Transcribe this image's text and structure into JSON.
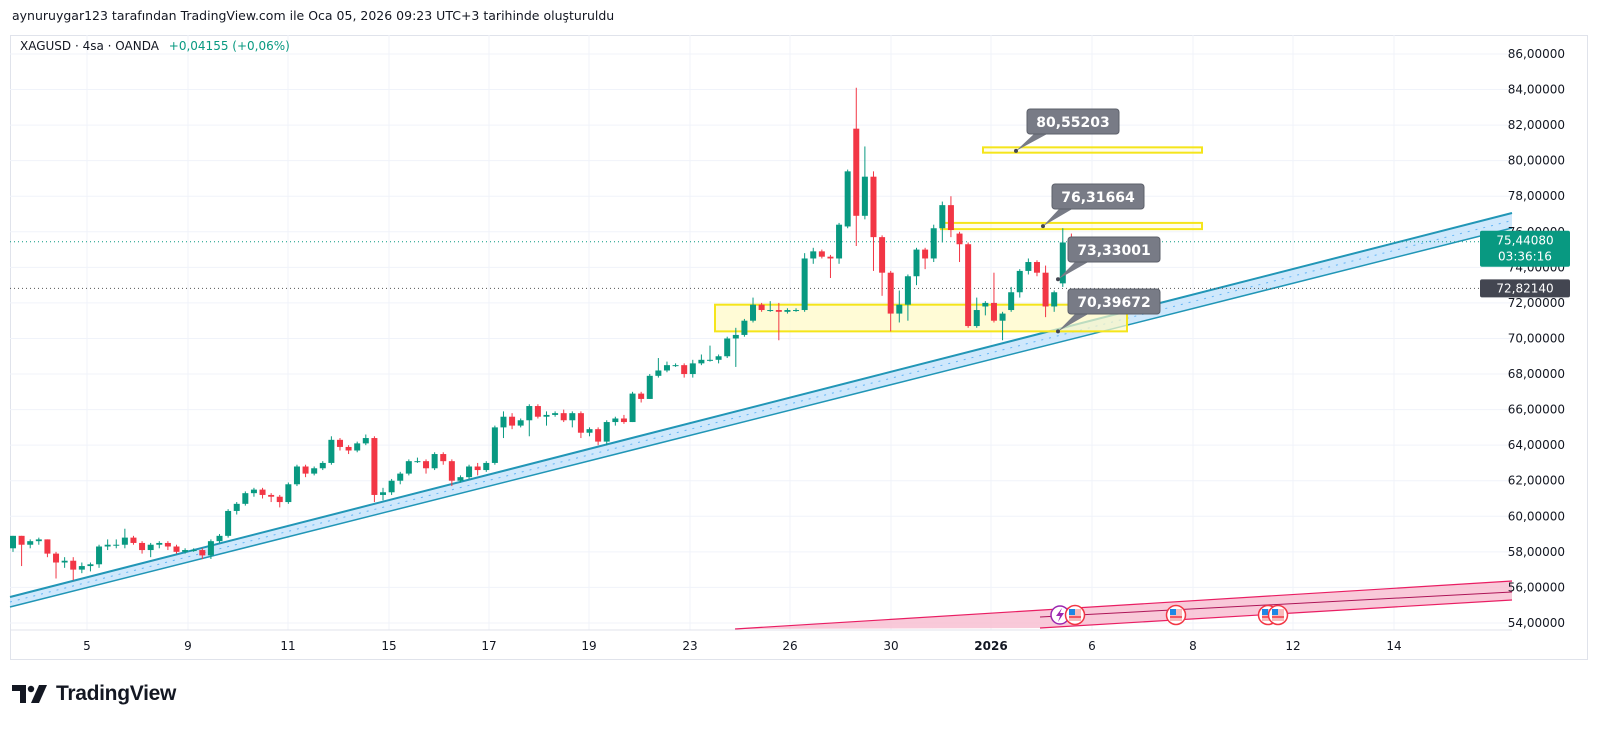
{
  "header": {
    "credit": "aynuruygar123 tarafından TradingView.com ile Oca 05, 2026 09:23 UTC+3 tarihinde oluşturuldu"
  },
  "legend": {
    "symbol": "XAGUSD · 4sa · OANDA",
    "change": "+0,04155 (+0,06%)"
  },
  "brand": {
    "name": "TradingView"
  },
  "colors": {
    "up": "#089981",
    "down": "#f23645",
    "trend": "#2196b6",
    "zone": "#f5e51b",
    "callout": "#787b86",
    "pink": "#e91e63"
  },
  "chart_data": {
    "type": "candlestick",
    "title": "XAGUSD · 4sa · OANDA",
    "ylim": [
      53,
      87
    ],
    "grid": true,
    "yticks": [
      "86,00000",
      "84,00000",
      "82,00000",
      "80,00000",
      "78,00000",
      "76,00000",
      "74,00000",
      "72,00000",
      "70,00000",
      "68,00000",
      "66,00000",
      "64,00000",
      "62,00000",
      "60,00000",
      "58,00000",
      "56,00000",
      "54,00000"
    ],
    "ytick_values": [
      86,
      84,
      82,
      80,
      78,
      76,
      74,
      72,
      70,
      68,
      66,
      64,
      62,
      60,
      58,
      56,
      54
    ],
    "xticks": [
      "5",
      "9",
      "11",
      "15",
      "17",
      "19",
      "23",
      "26",
      "30",
      "2026",
      "6",
      "8",
      "12",
      "14"
    ],
    "last_price": "75,44080",
    "countdown": "03:36:16",
    "last_price_value": 75.4408,
    "marker_price": "72,82140",
    "marker_price_value": 72.8214,
    "annotations": [
      {
        "label": "80,55203",
        "value": 80.55203
      },
      {
        "label": "76,31664",
        "value": 76.31664
      },
      {
        "label": "73,33001",
        "value": 73.33001
      },
      {
        "label": "70,39672",
        "value": 70.39672
      }
    ],
    "zones": [
      {
        "from": 80.45,
        "to": 80.75
      },
      {
        "from": 76.15,
        "to": 76.5
      },
      {
        "from": 70.4,
        "to": 71.9
      }
    ],
    "ohlc": [
      [
        58.2,
        58.9,
        58.0,
        58.9
      ],
      [
        58.9,
        58.9,
        57.2,
        58.4
      ],
      [
        58.4,
        58.7,
        58.2,
        58.6
      ],
      [
        58.6,
        58.8,
        58.4,
        58.7
      ],
      [
        58.7,
        58.7,
        57.7,
        57.9
      ],
      [
        57.9,
        58.0,
        56.5,
        57.4
      ],
      [
        57.4,
        57.7,
        57.1,
        57.5
      ],
      [
        57.5,
        57.7,
        56.4,
        57.0
      ],
      [
        57.0,
        57.4,
        56.8,
        57.2
      ],
      [
        57.2,
        57.4,
        56.9,
        57.3
      ],
      [
        57.3,
        58.4,
        57.1,
        58.3
      ],
      [
        58.3,
        58.7,
        58.1,
        58.4
      ],
      [
        58.4,
        58.7,
        58.2,
        58.4
      ],
      [
        58.4,
        59.3,
        58.2,
        58.8
      ],
      [
        58.8,
        58.9,
        58.4,
        58.5
      ],
      [
        58.5,
        58.6,
        57.9,
        58.1
      ],
      [
        58.1,
        58.5,
        57.7,
        58.4
      ],
      [
        58.4,
        58.6,
        58.2,
        58.5
      ],
      [
        58.5,
        58.6,
        58.1,
        58.3
      ],
      [
        58.3,
        58.4,
        57.9,
        58.0
      ],
      [
        58.0,
        58.2,
        57.9,
        58.1
      ],
      [
        58.1,
        58.2,
        58.0,
        58.1
      ],
      [
        58.1,
        58.2,
        57.6,
        57.8
      ],
      [
        57.8,
        58.7,
        57.6,
        58.6
      ],
      [
        58.6,
        59.0,
        58.5,
        58.9
      ],
      [
        58.9,
        60.4,
        58.8,
        60.3
      ],
      [
        60.3,
        60.8,
        60.1,
        60.7
      ],
      [
        60.7,
        61.4,
        60.6,
        61.3
      ],
      [
        61.3,
        61.6,
        61.1,
        61.5
      ],
      [
        61.5,
        61.6,
        61.0,
        61.2
      ],
      [
        61.2,
        61.3,
        60.8,
        61.1
      ],
      [
        61.1,
        61.2,
        60.5,
        60.8
      ],
      [
        60.8,
        61.9,
        60.7,
        61.8
      ],
      [
        61.8,
        62.9,
        61.7,
        62.8
      ],
      [
        62.8,
        62.9,
        62.2,
        62.4
      ],
      [
        62.4,
        62.8,
        62.3,
        62.7
      ],
      [
        62.7,
        63.1,
        62.6,
        63.0
      ],
      [
        63.0,
        64.5,
        62.9,
        64.3
      ],
      [
        64.3,
        64.4,
        63.7,
        63.9
      ],
      [
        63.9,
        64.0,
        63.5,
        63.7
      ],
      [
        63.7,
        64.2,
        63.6,
        64.1
      ],
      [
        64.1,
        64.6,
        64.0,
        64.4
      ],
      [
        64.4,
        64.5,
        60.8,
        61.2
      ],
      [
        61.2,
        61.6,
        60.9,
        61.35
      ],
      [
        61.35,
        62.1,
        61.2,
        62.0
      ],
      [
        62.0,
        62.5,
        61.8,
        62.4
      ],
      [
        62.4,
        63.2,
        62.3,
        63.1
      ],
      [
        63.1,
        63.3,
        63.0,
        63.1
      ],
      [
        63.1,
        63.2,
        62.4,
        62.7
      ],
      [
        62.7,
        63.6,
        62.6,
        63.5
      ],
      [
        63.5,
        63.6,
        62.9,
        63.1
      ],
      [
        63.1,
        63.2,
        61.7,
        62.0
      ],
      [
        62.0,
        62.3,
        61.9,
        62.2
      ],
      [
        62.2,
        62.9,
        62.1,
        62.8
      ],
      [
        62.8,
        63.0,
        62.3,
        62.6
      ],
      [
        62.6,
        63.1,
        62.5,
        63.0
      ],
      [
        63.0,
        65.1,
        62.9,
        65.0
      ],
      [
        65.0,
        65.9,
        64.4,
        65.6
      ],
      [
        65.6,
        65.8,
        64.9,
        65.1
      ],
      [
        65.1,
        65.5,
        65.0,
        65.4
      ],
      [
        65.4,
        66.3,
        64.5,
        66.2
      ],
      [
        66.2,
        66.3,
        65.5,
        65.6
      ],
      [
        65.6,
        65.9,
        65.1,
        65.7
      ],
      [
        65.7,
        65.9,
        65.6,
        65.8
      ],
      [
        65.8,
        66.0,
        65.3,
        65.4
      ],
      [
        65.4,
        65.9,
        65.0,
        65.8
      ],
      [
        65.8,
        65.9,
        64.4,
        64.7
      ],
      [
        64.7,
        65.0,
        64.5,
        64.9
      ],
      [
        64.9,
        65.0,
        64.0,
        64.2
      ],
      [
        64.2,
        65.4,
        64.0,
        65.3
      ],
      [
        65.3,
        65.6,
        65.1,
        65.5
      ],
      [
        65.5,
        65.7,
        65.2,
        65.3
      ],
      [
        65.3,
        67.0,
        65.3,
        66.9
      ],
      [
        66.9,
        67.0,
        66.4,
        66.6
      ],
      [
        66.6,
        68.0,
        66.6,
        67.9
      ],
      [
        67.9,
        68.9,
        67.8,
        68.2
      ],
      [
        68.2,
        68.7,
        68.1,
        68.5
      ],
      [
        68.5,
        68.6,
        68.4,
        68.5
      ],
      [
        68.5,
        68.6,
        67.8,
        68.0
      ],
      [
        68.0,
        68.8,
        67.8,
        68.6
      ],
      [
        68.6,
        69.1,
        68.5,
        68.8
      ],
      [
        68.8,
        69.6,
        68.7,
        68.8
      ],
      [
        68.8,
        69.1,
        68.6,
        69.0
      ],
      [
        69.0,
        70.1,
        68.9,
        70.0
      ],
      [
        70.0,
        70.6,
        68.4,
        70.2
      ],
      [
        70.2,
        71.1,
        70.1,
        71.0
      ],
      [
        71.0,
        72.3,
        70.9,
        71.9
      ],
      [
        71.9,
        72.0,
        71.5,
        71.6
      ],
      [
        71.6,
        72.1,
        71.5,
        71.6
      ],
      [
        71.6,
        72.0,
        69.9,
        71.5
      ],
      [
        71.5,
        71.7,
        71.4,
        71.6
      ],
      [
        71.6,
        71.7,
        71.5,
        71.6
      ],
      [
        71.6,
        74.8,
        71.5,
        74.5
      ],
      [
        74.5,
        75.1,
        74.2,
        74.9
      ],
      [
        74.9,
        75.0,
        74.5,
        74.6
      ],
      [
        74.6,
        74.7,
        73.4,
        74.5
      ],
      [
        74.5,
        76.5,
        74.2,
        76.4
      ],
      [
        76.3,
        79.5,
        76.2,
        79.4
      ],
      [
        81.8,
        84.1,
        75.2,
        76.9
      ],
      [
        76.9,
        80.8,
        76.7,
        79.1
      ],
      [
        79.1,
        79.4,
        73.8,
        75.7
      ],
      [
        75.7,
        75.8,
        72.4,
        73.7
      ],
      [
        73.7,
        73.8,
        70.4,
        71.4
      ],
      [
        71.4,
        72.7,
        70.9,
        71.9
      ],
      [
        71.9,
        73.6,
        71.0,
        73.5
      ],
      [
        73.5,
        75.1,
        73.0,
        75.0
      ],
      [
        75.0,
        75.1,
        73.9,
        74.5
      ],
      [
        74.5,
        76.4,
        74.3,
        76.2
      ],
      [
        76.2,
        77.7,
        75.4,
        77.5
      ],
      [
        77.5,
        78.0,
        75.7,
        76.1
      ],
      [
        75.9,
        76.0,
        74.3,
        75.3
      ],
      [
        75.3,
        75.4,
        70.6,
        70.7
      ],
      [
        70.7,
        72.3,
        70.6,
        71.6
      ],
      [
        71.8,
        72.1,
        71.3,
        72.0
      ],
      [
        72.0,
        73.7,
        70.9,
        71.0
      ],
      [
        71.0,
        71.5,
        69.9,
        71.4
      ],
      [
        71.6,
        72.9,
        71.5,
        72.6
      ],
      [
        72.6,
        73.9,
        72.3,
        73.8
      ],
      [
        73.8,
        74.5,
        73.6,
        74.3
      ],
      [
        74.3,
        74.4,
        73.5,
        73.7
      ],
      [
        73.7,
        74.1,
        71.2,
        71.8
      ],
      [
        71.8,
        72.7,
        71.5,
        72.6
      ],
      [
        73.1,
        76.2,
        72.9,
        75.4
      ],
      [
        75.6,
        75.9,
        75.1,
        75.3
      ],
      [
        75.4,
        75.5,
        75.4,
        75.44
      ]
    ]
  }
}
